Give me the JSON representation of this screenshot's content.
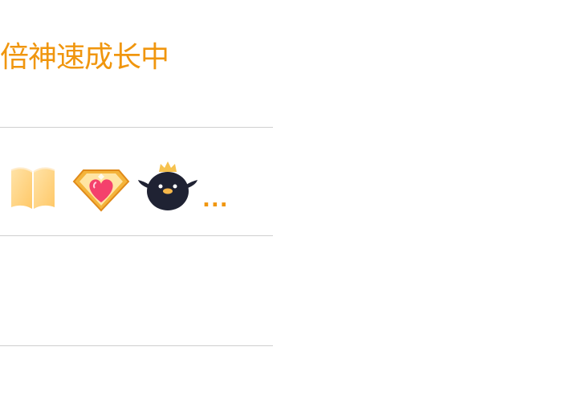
{
  "header": {
    "title": "倍神速成长中"
  },
  "icon_row": {
    "icons": [
      "book-icon",
      "diamond-heart-icon",
      "crowned-penguin-icon"
    ],
    "more_label": "..."
  },
  "colors": {
    "accent": "#f0960e",
    "divider": "#cfcfcf",
    "background": "#ffffff"
  }
}
